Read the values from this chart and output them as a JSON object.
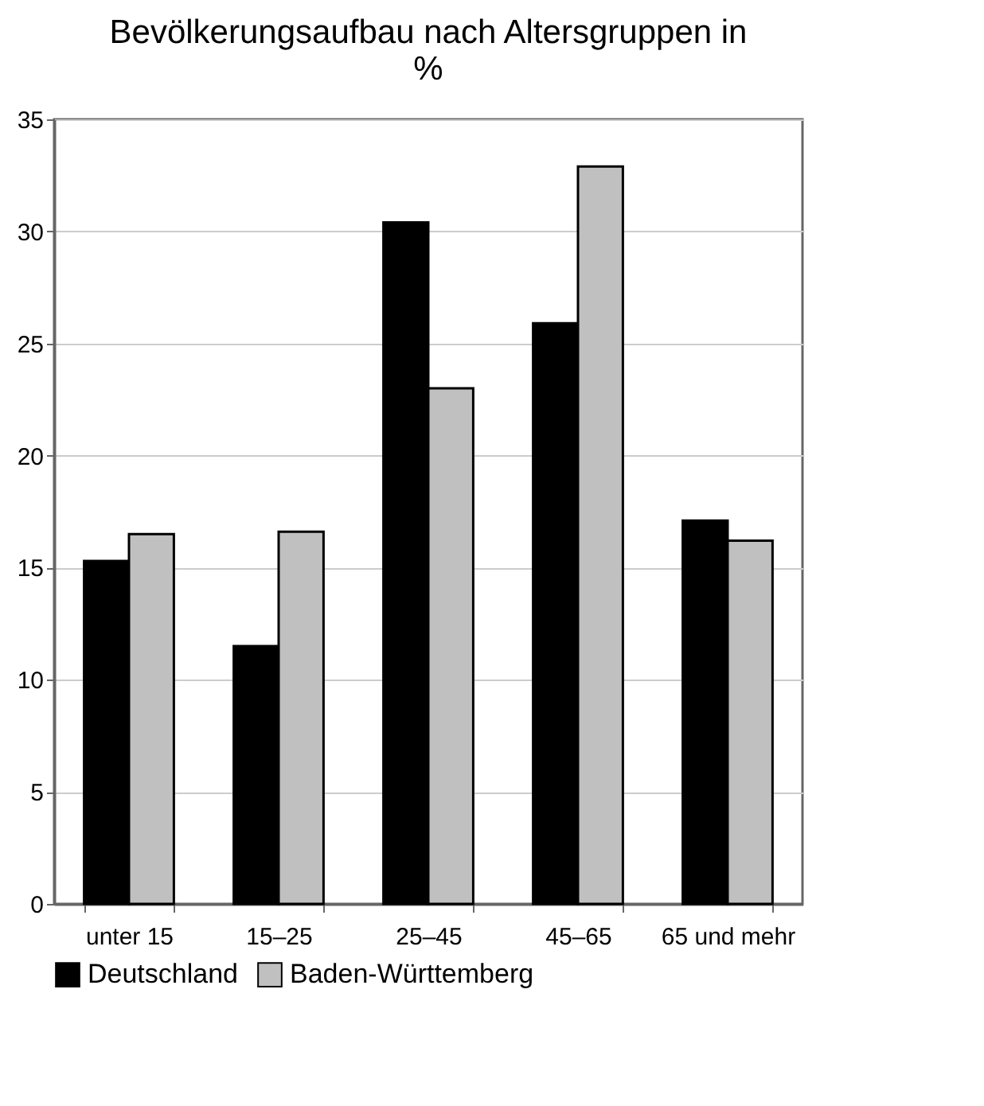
{
  "chart_data": {
    "type": "bar",
    "title": "Bevölkerungsaufbau nach Altersgruppen in %",
    "categories": [
      "unter 15",
      "15–25",
      "25–45",
      "45–65",
      "65 und mehr"
    ],
    "series": [
      {
        "name": "Deutschland",
        "color": "#000000",
        "values": [
          15.3,
          11.5,
          30.4,
          25.9,
          17.1
        ]
      },
      {
        "name": "Baden-Württemberg",
        "color": "#c0c0c0",
        "values": [
          16.5,
          16.6,
          23.0,
          32.9,
          16.2
        ]
      }
    ],
    "ylim": [
      0,
      35
    ],
    "yticks": [
      0,
      5,
      10,
      15,
      20,
      25,
      30,
      35
    ],
    "grid": "y",
    "legend": "bottom"
  }
}
